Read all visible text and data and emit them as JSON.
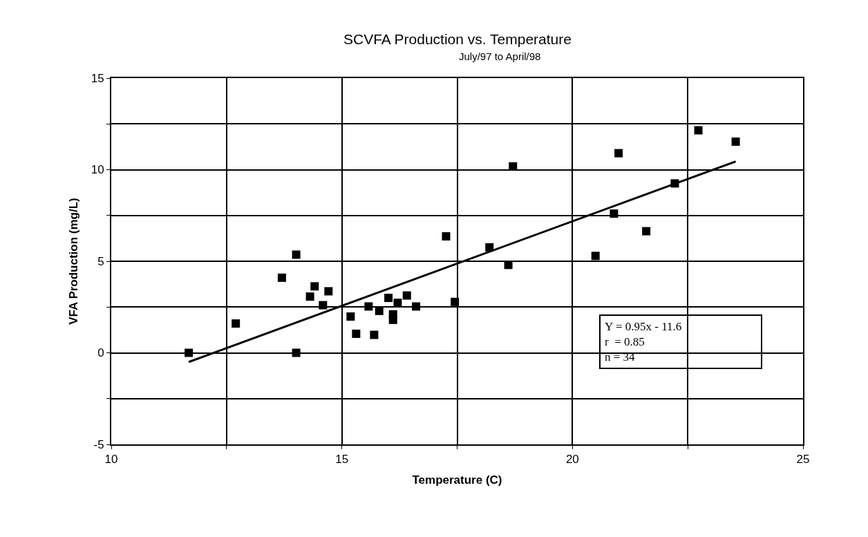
{
  "chart_data": {
    "type": "scatter",
    "title": "SCVFA Production vs. Temperature",
    "subtitle": "July/97 to April/98",
    "xlabel": "Temperature (C)",
    "ylabel": "VFA Production (mg/L)",
    "annotations": [
      "Y = 0.95x - 11.6\nr  = 0.85\nn = 34"
    ],
    "xlim": [
      10,
      25
    ],
    "xticks": [
      10,
      {
        "value": 12.5,
        "label": null
      },
      15,
      {
        "value": 17.5,
        "label": null
      },
      20,
      {
        "value": 22.5,
        "label": null
      },
      25
    ],
    "ylim": [
      -5,
      15
    ],
    "yticks": [
      -5,
      {
        "value": -2.5,
        "label": null
      },
      0,
      {
        "value": 2.5,
        "label": null
      },
      5,
      {
        "value": 7.5,
        "label": null
      },
      10,
      {
        "value": 12.5,
        "label": null
      },
      15
    ],
    "grid": true,
    "marker": "square",
    "series": [
      {
        "color": "#000000",
        "x": [
          11.68,
          12.7,
          13.7,
          14.01,
          14.01,
          14.31,
          14.41,
          14.71,
          14.59,
          15.19,
          15.31,
          15.7,
          15.58,
          15.81,
          16.01,
          16.11,
          16.11,
          16.21,
          16.41,
          16.61,
          17.26,
          17.45,
          18.71,
          18.2,
          18.61,
          20.5,
          20.9,
          21.0,
          21.6,
          22.22,
          22.73,
          23.54
        ],
        "values": [
          0.0,
          1.6,
          4.1,
          5.36,
          0.0,
          3.07,
          3.63,
          3.36,
          2.6,
          1.98,
          1.04,
          0.98,
          2.53,
          2.29,
          3.0,
          2.1,
          1.8,
          2.73,
          3.13,
          2.53,
          6.36,
          2.78,
          10.18,
          5.76,
          4.8,
          5.29,
          7.6,
          10.9,
          6.64,
          9.25,
          12.15,
          11.53
        ]
      },
      {
        "type": "line",
        "color": "#000000",
        "marker": "none",
        "line_style": "solid",
        "x": [
          11.68,
          23.54
        ],
        "values": [
          -0.5,
          10.45
        ]
      }
    ]
  }
}
